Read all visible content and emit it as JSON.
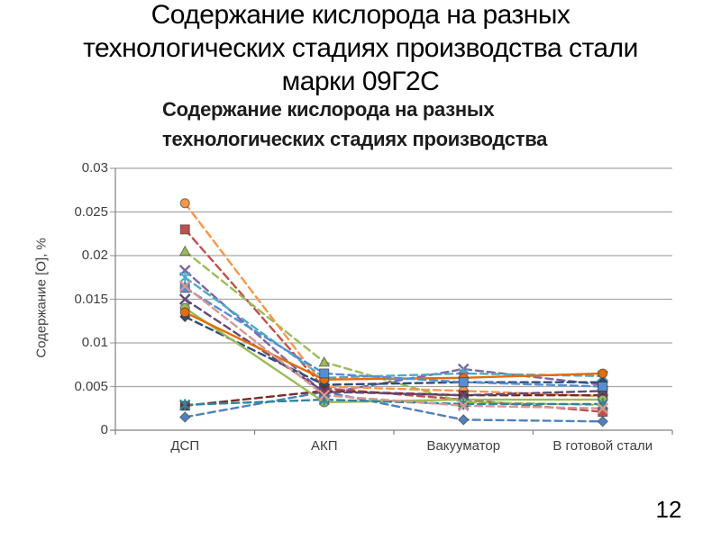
{
  "slide": {
    "title_lines": [
      "Содержание кислорода на разных",
      "технологических стадиях производства стали",
      "марки 09Г2С"
    ],
    "page_number": "12"
  },
  "chart": {
    "title_lines": [
      "Содержание кислорода на разных",
      "технологических стадиях производства"
    ],
    "y_axis_title": "Содержание [О], %"
  },
  "chart_data": {
    "type": "line",
    "title": "Содержание кислорода на разных технологических стадиях производства",
    "xlabel": "",
    "ylabel": "Содержание [О], %",
    "categories": [
      "ДСП",
      "АКП",
      "Вакууматор",
      "В готовой стали"
    ],
    "ylim": [
      0,
      0.03
    ],
    "ytick_step": 0.005,
    "ytick_labels": [
      "0",
      "0.005",
      "0.01",
      "0.015",
      "0.02",
      "0.025",
      "0.03"
    ],
    "grid": true,
    "legend": false,
    "line_style_default": "dashed",
    "series": [
      {
        "marker": "diamond",
        "color": "#4F81BD",
        "line_style": "dashed",
        "values": [
          0.0015,
          0.0044,
          0.0012,
          0.001
        ]
      },
      {
        "marker": "square",
        "color": "#C0504D",
        "line_style": "dashed",
        "values": [
          0.023,
          0.0048,
          0.0035,
          0.0021
        ]
      },
      {
        "marker": "triangle",
        "color": "#9BBB59",
        "line_style": "dashed",
        "values": [
          0.0205,
          0.0078,
          0.0032,
          0.0029
        ]
      },
      {
        "marker": "x",
        "color": "#8064A2",
        "line_style": "dashed",
        "values": [
          0.0183,
          0.0042,
          0.007,
          0.0052
        ]
      },
      {
        "marker": "asterisk",
        "color": "#4BACC6",
        "line_style": "dashed",
        "values": [
          0.0175,
          0.006,
          0.0065,
          0.0062
        ]
      },
      {
        "marker": "circle",
        "color": "#F79646",
        "line_style": "dashed",
        "values": [
          0.026,
          0.005,
          0.0045,
          0.0039
        ]
      },
      {
        "marker": "diamond",
        "color": "#2C4D75",
        "line_style": "dashed",
        "values": [
          0.013,
          0.0052,
          0.0055,
          0.0055
        ]
      },
      {
        "marker": "square",
        "color": "#772C2A",
        "line_style": "dashed",
        "values": [
          0.0028,
          0.0045,
          0.004,
          0.004
        ]
      },
      {
        "marker": "circle",
        "color": "#9BBB59",
        "line_style": "solid",
        "values": [
          0.014,
          0.0032,
          0.0035,
          0.0035
        ]
      },
      {
        "marker": "x",
        "color": "#604A7B",
        "line_style": "dashed",
        "values": [
          0.015,
          0.0044,
          0.004,
          0.0045
        ]
      },
      {
        "marker": "asterisk",
        "color": "#31859C",
        "line_style": "dashed",
        "values": [
          0.0029,
          0.0035,
          0.003,
          0.003
        ]
      },
      {
        "marker": "circle",
        "color": "#E46C0A",
        "line_style": "solid",
        "values": [
          0.0135,
          0.0058,
          0.006,
          0.0065
        ]
      },
      {
        "marker": "square",
        "color": "#558ED5",
        "line_style": "dashed",
        "values": [
          0.0163,
          0.0065,
          0.0055,
          0.005
        ]
      },
      {
        "marker": "x",
        "color": "#D99694",
        "line_style": "dashed",
        "values": [
          0.0165,
          0.004,
          0.0028,
          0.0025
        ]
      }
    ],
    "plot_colors": {
      "gridline": "#a6a6a6",
      "axis": "#808080",
      "tick_text": "#3f3f3f"
    }
  }
}
